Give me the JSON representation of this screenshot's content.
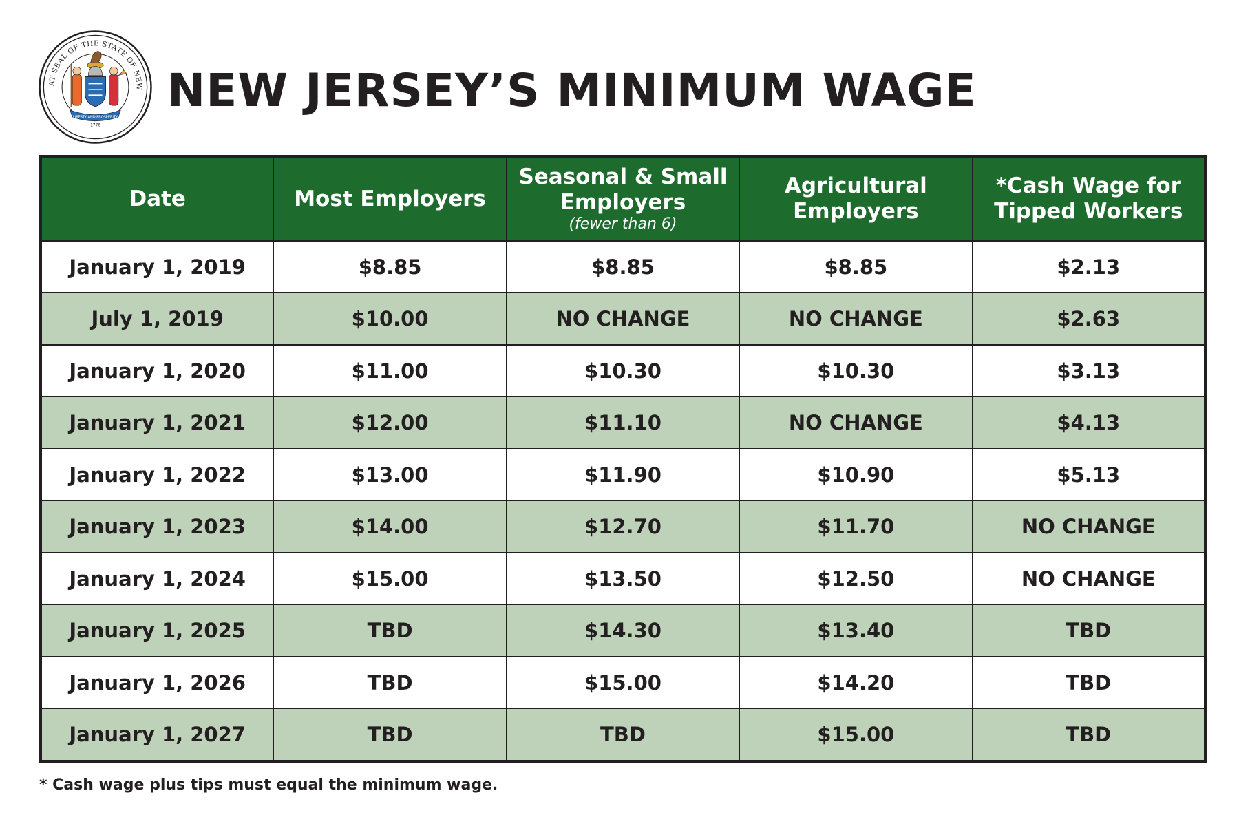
{
  "header": {
    "seal_text": "THE GREAT SEAL OF THE STATE OF NEW JERSEY",
    "seal_ribbon": "LIBERTY AND PROSPERITY",
    "seal_year": "1776",
    "title": "NEW JERSEY’S MINIMUM WAGE"
  },
  "table": {
    "columns": [
      {
        "label": "Date",
        "sub": ""
      },
      {
        "label": "Most Employers",
        "sub": ""
      },
      {
        "label": "Seasonal & Small Employers",
        "sub": "(fewer than 6)"
      },
      {
        "label": "Agricultural Employers",
        "sub": ""
      },
      {
        "label": "*Cash Wage for Tipped Workers",
        "sub": ""
      }
    ],
    "rows": [
      [
        "January 1, 2019",
        "$8.85",
        "$8.85",
        "$8.85",
        "$2.13"
      ],
      [
        "July 1, 2019",
        "$10.00",
        "NO CHANGE",
        "NO CHANGE",
        "$2.63"
      ],
      [
        "January 1, 2020",
        "$11.00",
        "$10.30",
        "$10.30",
        "$3.13"
      ],
      [
        "January 1, 2021",
        "$12.00",
        "$11.10",
        "NO CHANGE",
        "$4.13"
      ],
      [
        "January 1, 2022",
        "$13.00",
        "$11.90",
        "$10.90",
        "$5.13"
      ],
      [
        "January 1, 2023",
        "$14.00",
        "$12.70",
        "$11.70",
        "NO CHANGE"
      ],
      [
        "January 1, 2024",
        "$15.00",
        "$13.50",
        "$12.50",
        "NO CHANGE"
      ],
      [
        "January 1, 2025",
        "TBD",
        "$14.30",
        "$13.40",
        "TBD"
      ],
      [
        "January 1, 2026",
        "TBD",
        "$15.00",
        "$14.20",
        "TBD"
      ],
      [
        "January 1, 2027",
        "TBD",
        "TBD",
        "$15.00",
        "TBD"
      ]
    ]
  },
  "footnote": "* Cash wage plus tips must equal the minimum wage.",
  "colors": {
    "header_green": "#1e6b2e",
    "alt_row_green": "#bed1b9",
    "text_dark": "#231f20",
    "seal_blue": "#2a6db5",
    "seal_gold": "#d9a63a"
  }
}
